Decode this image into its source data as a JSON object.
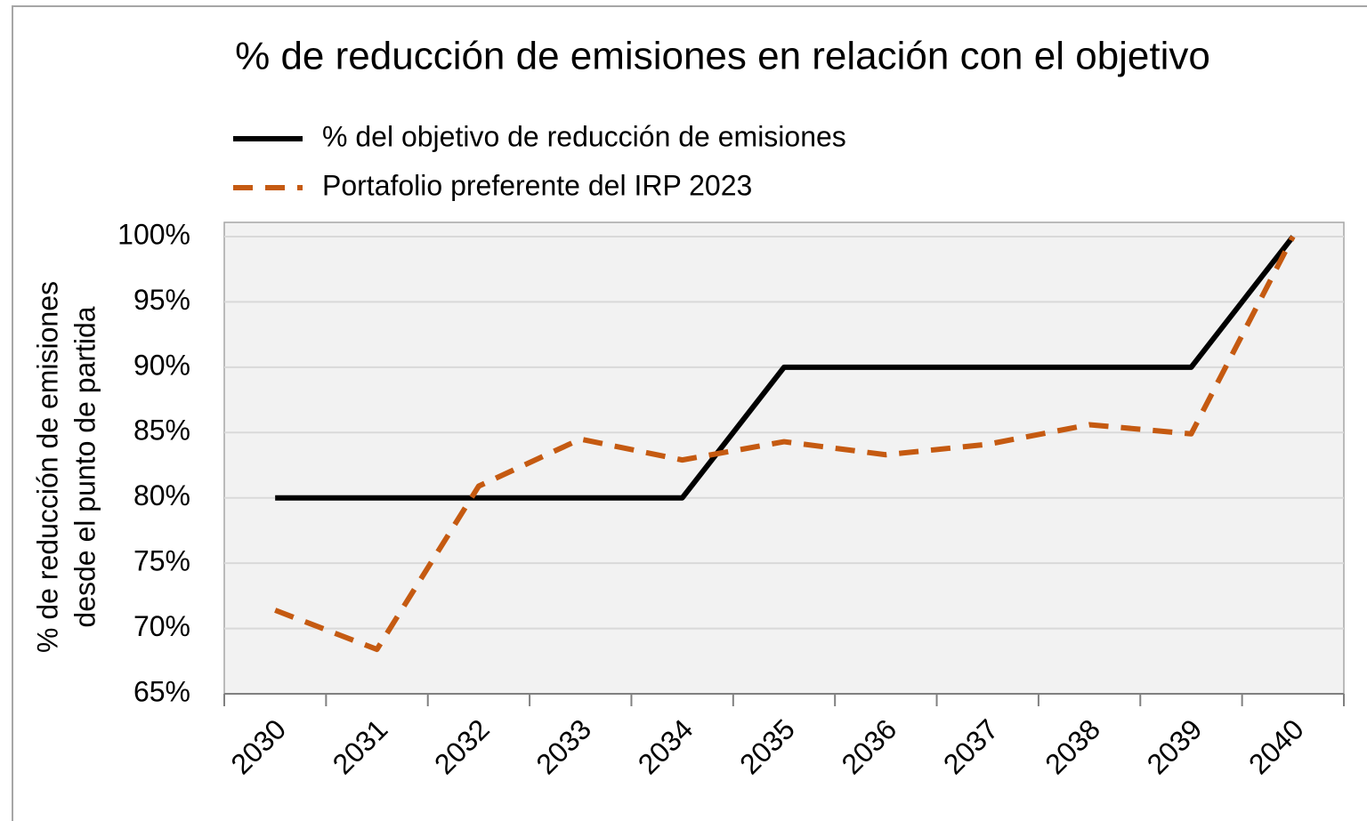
{
  "chart_data": {
    "type": "line",
    "title": "% de reducción de emisiones en relación con el objetivo",
    "ylabel": [
      "% de reducción de emisiones",
      "desde el punto de partida"
    ],
    "categories": [
      "2030",
      "2031",
      "2032",
      "2033",
      "2034",
      "2035",
      "2036",
      "2037",
      "2038",
      "2039",
      "2040"
    ],
    "series": [
      {
        "name": "% del objetivo de reducción de emisiones",
        "color": "#000000",
        "dash": false,
        "values": [
          80,
          80,
          80,
          80,
          80,
          90,
          90,
          90,
          90,
          90,
          100
        ]
      },
      {
        "name": "Portafolio preferente del IRP 2023",
        "color": "#c55a11",
        "dash": true,
        "values": [
          71.4,
          68.4,
          80.9,
          84.5,
          82.9,
          84.3,
          83.3,
          84.1,
          85.6,
          84.9,
          100
        ]
      }
    ],
    "ylim": [
      65,
      100
    ],
    "yticks": [
      {
        "value": 65,
        "label": "65%"
      },
      {
        "value": 70,
        "label": "70%"
      },
      {
        "value": 75,
        "label": "75%"
      },
      {
        "value": 80,
        "label": "80%"
      },
      {
        "value": 85,
        "label": "85%"
      },
      {
        "value": 90,
        "label": "90%"
      },
      {
        "value": 95,
        "label": "95%"
      },
      {
        "value": 100,
        "label": "100%"
      }
    ],
    "grid": true,
    "legend": "top-left"
  }
}
